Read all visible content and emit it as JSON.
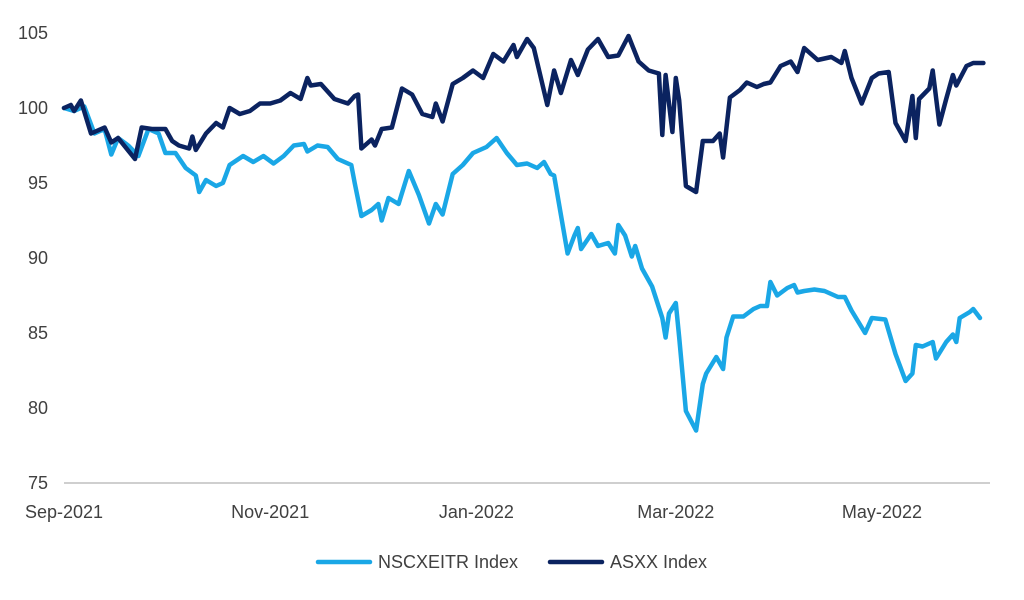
{
  "chart_data": {
    "type": "line",
    "title": "",
    "xlabel": "",
    "ylabel": "",
    "ylim": [
      75,
      105
    ],
    "yticks": [
      75,
      80,
      85,
      90,
      95,
      100,
      105
    ],
    "xlim": [
      "2021-09-01",
      "2022-05-31"
    ],
    "xticks": [
      "2021-09-01",
      "2021-11-01",
      "2022-01-01",
      "2022-03-01",
      "2022-05-01"
    ],
    "xtick_labels": [
      "Sep-2021",
      "Nov-2021",
      "Jan-2022",
      "Mar-2022",
      "May-2022"
    ],
    "grid": false,
    "legend_position": "bottom",
    "series": [
      {
        "name": "NSCXEITR Index",
        "color": "#1aa7e6",
        "points": [
          [
            "2021-09-01",
            100.0
          ],
          [
            "2021-09-04",
            99.8
          ],
          [
            "2021-09-07",
            100.1
          ],
          [
            "2021-09-10",
            98.3
          ],
          [
            "2021-09-13",
            98.6
          ],
          [
            "2021-09-15",
            96.9
          ],
          [
            "2021-09-17",
            98.0
          ],
          [
            "2021-09-20",
            97.5
          ],
          [
            "2021-09-23",
            96.8
          ],
          [
            "2021-09-26",
            98.6
          ],
          [
            "2021-09-29",
            98.3
          ],
          [
            "2021-10-01",
            97.0
          ],
          [
            "2021-10-04",
            97.0
          ],
          [
            "2021-10-07",
            96.0
          ],
          [
            "2021-10-10",
            95.5
          ],
          [
            "2021-10-11",
            94.4
          ],
          [
            "2021-10-13",
            95.2
          ],
          [
            "2021-10-16",
            94.8
          ],
          [
            "2021-10-18",
            95.0
          ],
          [
            "2021-10-20",
            96.2
          ],
          [
            "2021-10-24",
            96.8
          ],
          [
            "2021-10-27",
            96.4
          ],
          [
            "2021-10-30",
            96.8
          ],
          [
            "2021-11-02",
            96.3
          ],
          [
            "2021-11-05",
            96.8
          ],
          [
            "2021-11-08",
            97.5
          ],
          [
            "2021-11-11",
            97.6
          ],
          [
            "2021-11-12",
            97.1
          ],
          [
            "2021-11-15",
            97.5
          ],
          [
            "2021-11-18",
            97.4
          ],
          [
            "2021-11-21",
            96.6
          ],
          [
            "2021-11-25",
            96.2
          ],
          [
            "2021-11-26",
            95.0
          ],
          [
            "2021-11-28",
            92.8
          ],
          [
            "2021-12-01",
            93.2
          ],
          [
            "2021-12-03",
            93.6
          ],
          [
            "2021-12-04",
            92.5
          ],
          [
            "2021-12-06",
            94.0
          ],
          [
            "2021-12-09",
            93.6
          ],
          [
            "2021-12-12",
            95.8
          ],
          [
            "2021-12-15",
            94.2
          ],
          [
            "2021-12-18",
            92.3
          ],
          [
            "2021-12-20",
            93.6
          ],
          [
            "2021-12-22",
            92.9
          ],
          [
            "2021-12-25",
            95.6
          ],
          [
            "2021-12-28",
            96.2
          ],
          [
            "2021-12-31",
            97.0
          ],
          [
            "2022-01-04",
            97.4
          ],
          [
            "2022-01-07",
            98.0
          ],
          [
            "2022-01-10",
            97.0
          ],
          [
            "2022-01-13",
            96.2
          ],
          [
            "2022-01-16",
            96.3
          ],
          [
            "2022-01-19",
            96.0
          ],
          [
            "2022-01-21",
            96.4
          ],
          [
            "2022-01-23",
            95.6
          ],
          [
            "2022-01-24",
            95.5
          ],
          [
            "2022-01-28",
            90.3
          ],
          [
            "2022-01-30",
            91.5
          ],
          [
            "2022-01-31",
            92.0
          ],
          [
            "2022-02-01",
            90.6
          ],
          [
            "2022-02-04",
            91.6
          ],
          [
            "2022-02-06",
            90.8
          ],
          [
            "2022-02-09",
            91.0
          ],
          [
            "2022-02-11",
            90.3
          ],
          [
            "2022-02-12",
            92.2
          ],
          [
            "2022-02-14",
            91.5
          ],
          [
            "2022-02-16",
            90.1
          ],
          [
            "2022-02-17",
            90.8
          ],
          [
            "2022-02-19",
            89.3
          ],
          [
            "2022-02-22",
            88.1
          ],
          [
            "2022-02-25",
            86.0
          ],
          [
            "2022-02-26",
            84.7
          ],
          [
            "2022-02-27",
            86.3
          ],
          [
            "2022-03-01",
            87.0
          ],
          [
            "2022-03-02",
            84.7
          ],
          [
            "2022-03-04",
            79.8
          ],
          [
            "2022-03-07",
            78.5
          ],
          [
            "2022-03-09",
            81.6
          ],
          [
            "2022-03-10",
            82.3
          ],
          [
            "2022-03-13",
            83.4
          ],
          [
            "2022-03-15",
            82.6
          ],
          [
            "2022-03-16",
            84.7
          ],
          [
            "2022-03-18",
            86.1
          ],
          [
            "2022-03-21",
            86.1
          ],
          [
            "2022-03-24",
            86.6
          ],
          [
            "2022-03-26",
            86.8
          ],
          [
            "2022-03-28",
            86.8
          ],
          [
            "2022-03-29",
            88.4
          ],
          [
            "2022-03-31",
            87.5
          ],
          [
            "2022-04-03",
            88.0
          ],
          [
            "2022-04-05",
            88.2
          ],
          [
            "2022-04-06",
            87.7
          ],
          [
            "2022-04-08",
            87.8
          ],
          [
            "2022-04-11",
            87.9
          ],
          [
            "2022-04-14",
            87.8
          ],
          [
            "2022-04-18",
            87.4
          ],
          [
            "2022-04-20",
            87.4
          ],
          [
            "2022-04-22",
            86.5
          ],
          [
            "2022-04-26",
            85.0
          ],
          [
            "2022-04-28",
            86.0
          ],
          [
            "2022-05-02",
            85.9
          ],
          [
            "2022-05-05",
            83.6
          ],
          [
            "2022-05-08",
            81.8
          ],
          [
            "2022-05-10",
            82.3
          ],
          [
            "2022-05-11",
            84.2
          ],
          [
            "2022-05-13",
            84.1
          ],
          [
            "2022-05-16",
            84.4
          ],
          [
            "2022-05-17",
            83.3
          ],
          [
            "2022-05-20",
            84.4
          ],
          [
            "2022-05-22",
            84.9
          ],
          [
            "2022-05-23",
            84.4
          ],
          [
            "2022-05-24",
            86.0
          ],
          [
            "2022-05-27",
            86.4
          ],
          [
            "2022-05-28",
            86.6
          ],
          [
            "2022-05-30",
            86.0
          ]
        ]
      },
      {
        "name": "ASXX Index",
        "color": "#0b2360",
        "points": [
          [
            "2021-09-01",
            100.0
          ],
          [
            "2021-09-03",
            100.2
          ],
          [
            "2021-09-04",
            99.8
          ],
          [
            "2021-09-06",
            100.5
          ],
          [
            "2021-09-09",
            98.3
          ],
          [
            "2021-09-13",
            98.7
          ],
          [
            "2021-09-15",
            97.7
          ],
          [
            "2021-09-17",
            98.0
          ],
          [
            "2021-09-22",
            96.6
          ],
          [
            "2021-09-24",
            98.7
          ],
          [
            "2021-09-27",
            98.6
          ],
          [
            "2021-09-29",
            98.6
          ],
          [
            "2021-10-01",
            98.6
          ],
          [
            "2021-10-03",
            97.8
          ],
          [
            "2021-10-05",
            97.5
          ],
          [
            "2021-10-08",
            97.3
          ],
          [
            "2021-10-09",
            98.1
          ],
          [
            "2021-10-10",
            97.2
          ],
          [
            "2021-10-13",
            98.3
          ],
          [
            "2021-10-16",
            99.0
          ],
          [
            "2021-10-18",
            98.7
          ],
          [
            "2021-10-20",
            100.0
          ],
          [
            "2021-10-23",
            99.6
          ],
          [
            "2021-10-26",
            99.8
          ],
          [
            "2021-10-29",
            100.3
          ],
          [
            "2021-11-01",
            100.3
          ],
          [
            "2021-11-04",
            100.5
          ],
          [
            "2021-11-07",
            101.0
          ],
          [
            "2021-11-10",
            100.6
          ],
          [
            "2021-11-12",
            102.0
          ],
          [
            "2021-11-13",
            101.5
          ],
          [
            "2021-11-16",
            101.6
          ],
          [
            "2021-11-20",
            100.6
          ],
          [
            "2021-11-24",
            100.3
          ],
          [
            "2021-11-26",
            100.8
          ],
          [
            "2021-11-27",
            100.9
          ],
          [
            "2021-11-28",
            97.3
          ],
          [
            "2021-12-01",
            97.9
          ],
          [
            "2021-12-02",
            97.5
          ],
          [
            "2021-12-04",
            98.6
          ],
          [
            "2021-12-07",
            98.7
          ],
          [
            "2021-12-10",
            101.3
          ],
          [
            "2021-12-13",
            100.9
          ],
          [
            "2021-12-16",
            99.6
          ],
          [
            "2021-12-19",
            99.4
          ],
          [
            "2021-12-20",
            100.3
          ],
          [
            "2021-12-22",
            99.1
          ],
          [
            "2021-12-25",
            101.6
          ],
          [
            "2021-12-28",
            102.0
          ],
          [
            "2021-12-31",
            102.5
          ],
          [
            "2022-01-03",
            102.0
          ],
          [
            "2022-01-06",
            103.6
          ],
          [
            "2022-01-09",
            103.1
          ],
          [
            "2022-01-12",
            104.2
          ],
          [
            "2022-01-13",
            103.4
          ],
          [
            "2022-01-16",
            104.6
          ],
          [
            "2022-01-18",
            104.0
          ],
          [
            "2022-01-22",
            100.2
          ],
          [
            "2022-01-24",
            102.5
          ],
          [
            "2022-01-26",
            101.0
          ],
          [
            "2022-01-29",
            103.2
          ],
          [
            "2022-01-31",
            102.2
          ],
          [
            "2022-02-03",
            103.9
          ],
          [
            "2022-02-06",
            104.6
          ],
          [
            "2022-02-09",
            103.4
          ],
          [
            "2022-02-12",
            103.5
          ],
          [
            "2022-02-15",
            104.8
          ],
          [
            "2022-02-18",
            103.1
          ],
          [
            "2022-02-21",
            102.5
          ],
          [
            "2022-02-24",
            102.3
          ],
          [
            "2022-02-25",
            98.2
          ],
          [
            "2022-02-26",
            102.2
          ],
          [
            "2022-02-28",
            98.4
          ],
          [
            "2022-03-01",
            102.0
          ],
          [
            "2022-03-02",
            100.5
          ],
          [
            "2022-03-04",
            94.8
          ],
          [
            "2022-03-07",
            94.4
          ],
          [
            "2022-03-09",
            97.8
          ],
          [
            "2022-03-12",
            97.8
          ],
          [
            "2022-03-14",
            98.3
          ],
          [
            "2022-03-15",
            96.7
          ],
          [
            "2022-03-17",
            100.7
          ],
          [
            "2022-03-20",
            101.2
          ],
          [
            "2022-03-22",
            101.7
          ],
          [
            "2022-03-25",
            101.4
          ],
          [
            "2022-03-27",
            101.6
          ],
          [
            "2022-03-29",
            101.7
          ],
          [
            "2022-04-01",
            102.8
          ],
          [
            "2022-04-04",
            103.1
          ],
          [
            "2022-04-06",
            102.4
          ],
          [
            "2022-04-08",
            104.0
          ],
          [
            "2022-04-12",
            103.2
          ],
          [
            "2022-04-16",
            103.4
          ],
          [
            "2022-04-19",
            103.0
          ],
          [
            "2022-04-20",
            103.8
          ],
          [
            "2022-04-22",
            102.0
          ],
          [
            "2022-04-25",
            100.3
          ],
          [
            "2022-04-28",
            102.0
          ],
          [
            "2022-04-30",
            102.3
          ],
          [
            "2022-05-03",
            102.4
          ],
          [
            "2022-05-05",
            99.0
          ],
          [
            "2022-05-08",
            97.8
          ],
          [
            "2022-05-10",
            100.8
          ],
          [
            "2022-05-11",
            98.0
          ],
          [
            "2022-05-12",
            100.6
          ],
          [
            "2022-05-15",
            101.3
          ],
          [
            "2022-05-16",
            102.5
          ],
          [
            "2022-05-18",
            98.9
          ],
          [
            "2022-05-20",
            100.6
          ],
          [
            "2022-05-22",
            102.2
          ],
          [
            "2022-05-23",
            101.5
          ],
          [
            "2022-05-26",
            102.8
          ],
          [
            "2022-05-28",
            103.0
          ],
          [
            "2022-05-31",
            103.0
          ]
        ]
      }
    ]
  }
}
